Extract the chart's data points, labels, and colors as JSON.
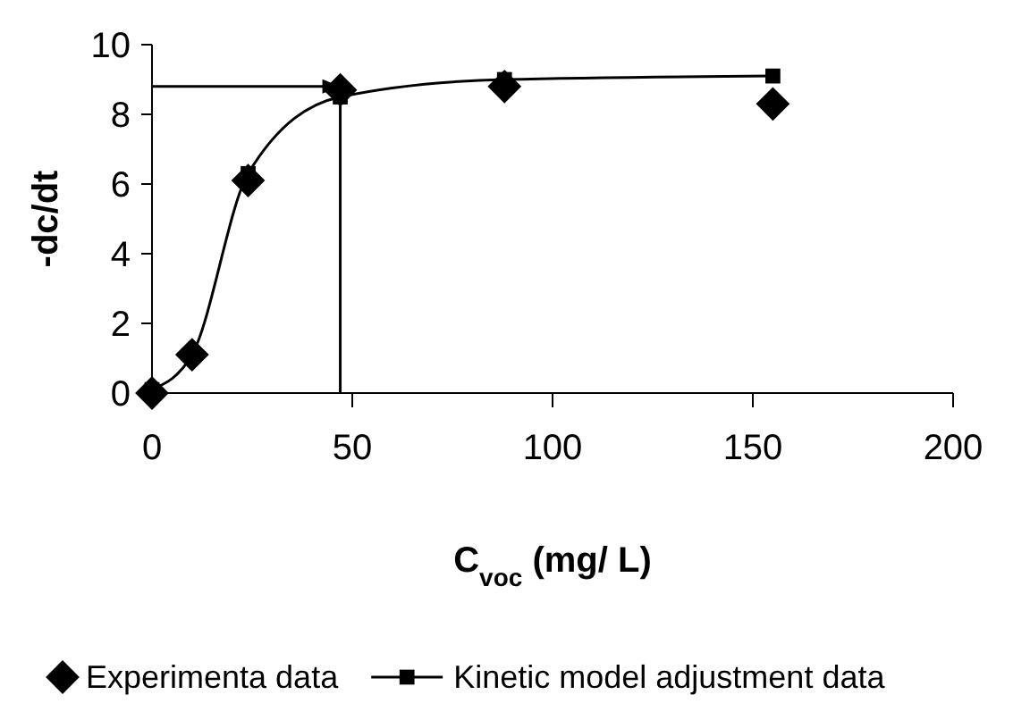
{
  "chart_data": {
    "type": "scatter",
    "xlabel": "C$_{voc}$ (mg/ L)",
    "ylabel": "-dc/dt",
    "xlim": [
      0,
      200
    ],
    "xticks": [
      0,
      50,
      100,
      150,
      200
    ],
    "ylim": [
      0,
      10
    ],
    "yticks": [
      0,
      2,
      4,
      6,
      8,
      10
    ],
    "grid": false,
    "legend": "bottom",
    "series": [
      {
        "name": "Experimenta data",
        "marker": "diamond",
        "color": "#000000",
        "x": [
          0,
          10,
          24,
          47,
          88,
          155
        ],
        "values": [
          0,
          1.1,
          6.1,
          8.7,
          8.8,
          8.3
        ]
      },
      {
        "name": "Kinetic model adjustment data",
        "type": "line",
        "marker": "square",
        "color": "#000000",
        "x": [
          0,
          10,
          24,
          47,
          88,
          155
        ],
        "values": [
          0.1,
          1.1,
          6.3,
          8.5,
          9.0,
          9.1
        ]
      }
    ],
    "ref_lines": [
      {
        "axis": "y",
        "value": 8.8,
        "line_style": "solid"
      },
      {
        "axis": "x",
        "value": 47,
        "line_style": "solid"
      }
    ]
  }
}
